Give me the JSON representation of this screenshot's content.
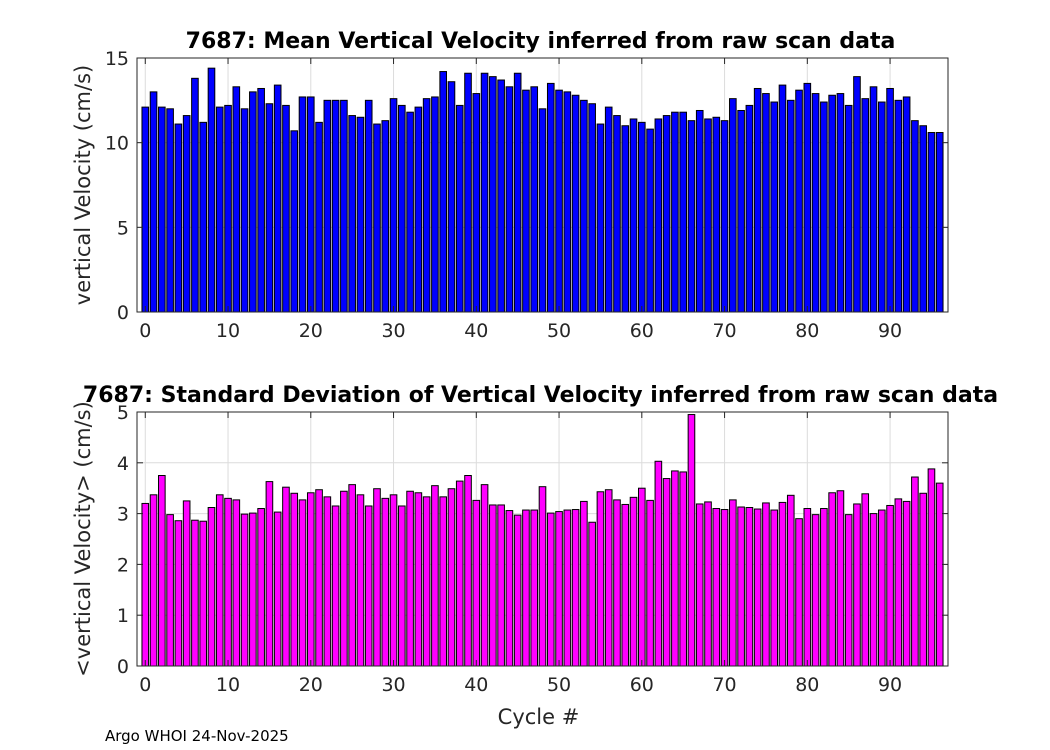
{
  "chart_data": [
    {
      "type": "bar",
      "title": "7687: Mean Vertical Velocity inferred from raw scan data",
      "xlabel": "",
      "ylabel": "vertical Velocity (cm/s)",
      "xlim": [
        -1,
        97
      ],
      "ylim": [
        0,
        15
      ],
      "xticks": [
        0,
        10,
        20,
        30,
        40,
        50,
        60,
        70,
        80,
        90
      ],
      "yticks": [
        0,
        5,
        10,
        15
      ],
      "grid": true,
      "color": "#0000ff",
      "x": [
        0,
        1,
        2,
        3,
        4,
        5,
        6,
        7,
        8,
        9,
        10,
        11,
        12,
        13,
        14,
        15,
        16,
        17,
        18,
        19,
        20,
        21,
        22,
        23,
        24,
        25,
        26,
        27,
        28,
        29,
        30,
        31,
        32,
        33,
        34,
        35,
        36,
        37,
        38,
        39,
        40,
        41,
        42,
        43,
        44,
        45,
        46,
        47,
        48,
        49,
        50,
        51,
        52,
        53,
        54,
        55,
        56,
        57,
        58,
        59,
        60,
        61,
        62,
        63,
        64,
        65,
        66,
        67,
        68,
        69,
        70,
        71,
        72,
        73,
        74,
        75,
        76,
        77,
        78,
        79,
        80,
        81,
        82,
        83,
        84,
        85,
        86,
        87,
        88,
        89,
        90,
        91,
        92,
        93,
        94,
        95,
        96
      ],
      "values": [
        12.1,
        13.0,
        12.1,
        12.0,
        11.1,
        11.6,
        13.8,
        11.2,
        14.4,
        12.1,
        12.2,
        13.3,
        12.0,
        13.0,
        13.2,
        12.3,
        13.4,
        12.2,
        10.7,
        12.7,
        12.7,
        11.2,
        12.5,
        12.5,
        12.5,
        11.6,
        11.5,
        12.5,
        11.1,
        11.3,
        12.6,
        12.2,
        11.8,
        12.1,
        12.6,
        12.7,
        14.2,
        13.6,
        12.2,
        14.1,
        12.9,
        14.1,
        13.9,
        13.7,
        13.3,
        14.1,
        13.1,
        13.3,
        12.0,
        13.5,
        13.1,
        13.0,
        12.8,
        12.5,
        12.3,
        11.1,
        12.1,
        11.6,
        11.0,
        11.4,
        11.2,
        10.8,
        11.4,
        11.6,
        11.8,
        11.8,
        11.3,
        11.9,
        11.4,
        11.5,
        11.3,
        12.6,
        11.9,
        12.2,
        13.2,
        12.9,
        12.4,
        13.4,
        12.5,
        13.1,
        13.5,
        12.9,
        12.4,
        12.8,
        12.9,
        12.2,
        13.9,
        12.6,
        13.3,
        12.4,
        13.2,
        12.5,
        12.7,
        11.3,
        11.0,
        10.6,
        10.6
      ]
    },
    {
      "type": "bar",
      "title": "7687: Standard Deviation of Vertical Velocity inferred from raw scan data",
      "xlabel": "Cycle #",
      "ylabel": "<vertical Velocity> (cm/s)",
      "xlim": [
        -1,
        97
      ],
      "ylim": [
        0,
        5
      ],
      "xticks": [
        0,
        10,
        20,
        30,
        40,
        50,
        60,
        70,
        80,
        90
      ],
      "yticks": [
        0,
        1,
        2,
        3,
        4,
        5
      ],
      "grid": true,
      "color": "#ff00ff",
      "x": [
        0,
        1,
        2,
        3,
        4,
        5,
        6,
        7,
        8,
        9,
        10,
        11,
        12,
        13,
        14,
        15,
        16,
        17,
        18,
        19,
        20,
        21,
        22,
        23,
        24,
        25,
        26,
        27,
        28,
        29,
        30,
        31,
        32,
        33,
        34,
        35,
        36,
        37,
        38,
        39,
        40,
        41,
        42,
        43,
        44,
        45,
        46,
        47,
        48,
        49,
        50,
        51,
        52,
        53,
        54,
        55,
        56,
        57,
        58,
        59,
        60,
        61,
        62,
        63,
        64,
        65,
        66,
        67,
        68,
        69,
        70,
        71,
        72,
        73,
        74,
        75,
        76,
        77,
        78,
        79,
        80,
        81,
        82,
        83,
        84,
        85,
        86,
        87,
        88,
        89,
        90,
        91,
        92,
        93,
        94,
        95,
        96
      ],
      "values": [
        3.2,
        3.37,
        3.75,
        2.98,
        2.86,
        3.25,
        2.87,
        2.85,
        3.12,
        3.37,
        3.3,
        3.27,
        2.99,
        3.01,
        3.1,
        3.63,
        3.03,
        3.52,
        3.4,
        3.27,
        3.41,
        3.47,
        3.33,
        3.15,
        3.44,
        3.57,
        3.37,
        3.15,
        3.49,
        3.3,
        3.37,
        3.15,
        3.44,
        3.41,
        3.33,
        3.55,
        3.33,
        3.49,
        3.64,
        3.75,
        3.26,
        3.57,
        3.17,
        3.17,
        3.06,
        2.97,
        3.07,
        3.07,
        3.53,
        3.01,
        3.04,
        3.07,
        3.08,
        3.24,
        2.83,
        3.43,
        3.47,
        3.27,
        3.18,
        3.32,
        3.5,
        3.26,
        4.03,
        3.69,
        3.84,
        3.82,
        4.95,
        3.19,
        3.23,
        3.1,
        3.08,
        3.27,
        3.13,
        3.12,
        3.09,
        3.21,
        3.07,
        3.22,
        3.36,
        2.9,
        3.1,
        2.98,
        3.1,
        3.41,
        3.45,
        2.98,
        3.19,
        3.39,
        3.0,
        3.07,
        3.16,
        3.29,
        3.24,
        3.72,
        3.4,
        3.88,
        3.6
      ]
    }
  ],
  "footer": "Argo WHOI 24-Nov-2025"
}
